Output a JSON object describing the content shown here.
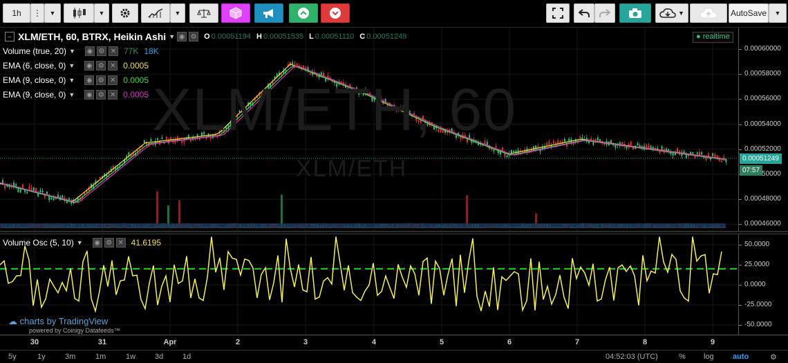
{
  "toolbar": {
    "interval": "1h",
    "autosave_label": "AutoSave"
  },
  "legend": {
    "symbol": "XLM/ETH, 60, BTRX, Heikin Ashi",
    "ohlc": [
      {
        "k": "O",
        "v": "0.00051194"
      },
      {
        "k": "H",
        "v": "0.00051535"
      },
      {
        "k": "L",
        "v": "0.00051110"
      },
      {
        "k": "C",
        "v": "0.00051249"
      }
    ],
    "studies": [
      {
        "name": "Volume (true, 20)",
        "values": [
          {
            "v": "77K",
            "color": "#2e8b57"
          },
          {
            "v": "18K",
            "color": "#3b9ce0"
          }
        ]
      },
      {
        "name": "EMA (6, close, 0)",
        "values": [
          {
            "v": "0.0005",
            "color": "#f0e040"
          }
        ]
      },
      {
        "name": "EMA (9, close, 0)",
        "values": [
          {
            "v": "0.0005",
            "color": "#3fdc3f"
          }
        ]
      },
      {
        "name": "EMA (9, close, 0)",
        "values": [
          {
            "v": "0.0005",
            "color": "#e030d0"
          }
        ]
      }
    ],
    "realtime": "● realtime"
  },
  "watermark": {
    "big": "XLM/ETH, 60",
    "small": "XLM/ETH"
  },
  "osc": {
    "name": "Volume Osc (5, 10)",
    "value": "41.6195",
    "value_color": "#f0e040"
  },
  "price_axis": {
    "labels": [
      "0.00060000",
      "0.00058000",
      "0.00056000",
      "0.00054000",
      "0.00052000",
      "0.00050000",
      "0.00048000",
      "0.00046000"
    ],
    "last_price": "0.00051249",
    "countdown": "07:57",
    "tag_color": "#26a69a"
  },
  "osc_axis": {
    "labels": [
      "50.0000",
      "25.0000",
      "0.0000",
      "-25.0000",
      "-50.0000"
    ]
  },
  "time_axis": {
    "labels": [
      "30",
      "31",
      "Apr",
      "2",
      "3",
      "4",
      "5",
      "6",
      "7",
      "8",
      "9"
    ]
  },
  "bottom_bar": {
    "ranges": [
      "5y",
      "1y",
      "3m",
      "1m",
      "1w",
      "3d",
      "1d"
    ],
    "clock": "04:52:03 (UTC)",
    "percent": "%",
    "log": "log",
    "auto": "auto"
  },
  "branding": {
    "tv": "charts by TradingView",
    "powered": "powered by Coinigy Datafeeds™"
  },
  "chart_data": [
    {
      "type": "line",
      "title": "XLM/ETH, 60, BTRX, Heikin Ashi",
      "x": [
        "30",
        "31",
        "Apr",
        "2",
        "3",
        "4",
        "5",
        "6",
        "7",
        "8",
        "9"
      ],
      "series": [
        {
          "name": "EMA (6, close, 0)",
          "values": [
            0.000493,
            0.000478,
            0.000525,
            0.000532,
            0.000588,
            0.000565,
            0.000538,
            0.000516,
            0.000528,
            0.00052,
            0.000512
          ]
        }
      ],
      "ylim": [
        0.00046,
        0.000605
      ]
    },
    {
      "type": "line",
      "title": "Volume Osc (5, 10)",
      "x": [
        "30",
        "31",
        "Apr",
        "2",
        "3",
        "4",
        "5",
        "6",
        "7",
        "8",
        "9"
      ],
      "series": [
        {
          "name": "Volume Osc (5, 10)",
          "values": [
            -10,
            -30,
            20,
            55,
            60,
            20,
            30,
            -10,
            5,
            15,
            41.6195
          ]
        }
      ],
      "ylim": [
        -55,
        60
      ],
      "reference_line": 20
    }
  ]
}
